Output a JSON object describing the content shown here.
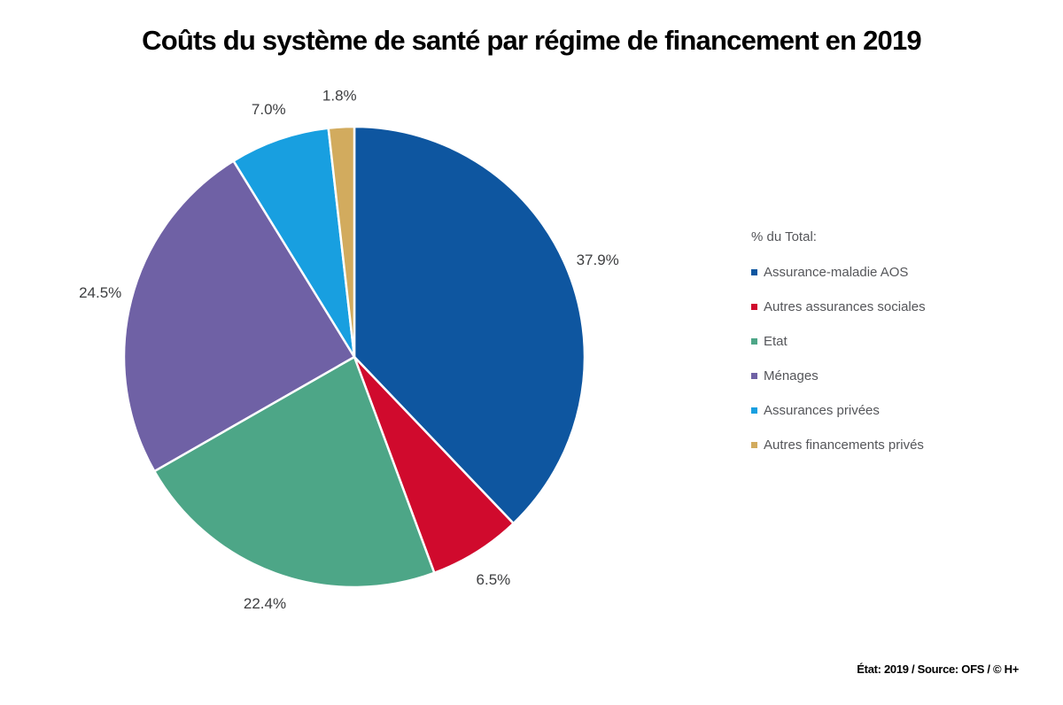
{
  "chart_data": {
    "type": "pie",
    "title": "Coûts du système de santé par régime de financement en 2019",
    "legend_title": "% du Total:",
    "legend_position": "right",
    "unit": "%",
    "start_angle_deg": 0,
    "direction": "clockwise",
    "labels": [
      "Assurance-maladie AOS",
      "Autres assurances sociales",
      "Etat",
      "Ménages",
      "Assurances privées",
      "Autres financements privés"
    ],
    "values": [
      37.9,
      6.5,
      22.4,
      24.5,
      7.0,
      1.8
    ],
    "display_values": [
      "37.9%",
      "6.5%",
      "22.4%",
      "24.5%",
      "7.0%",
      "1.8%"
    ],
    "colors": [
      "#0E56A0",
      "#D00A2D",
      "#4DA687",
      "#6F61A5",
      "#189FE0",
      "#D2AB5E"
    ],
    "source_note": "État: 2019 / Source: OFS / © H+"
  }
}
